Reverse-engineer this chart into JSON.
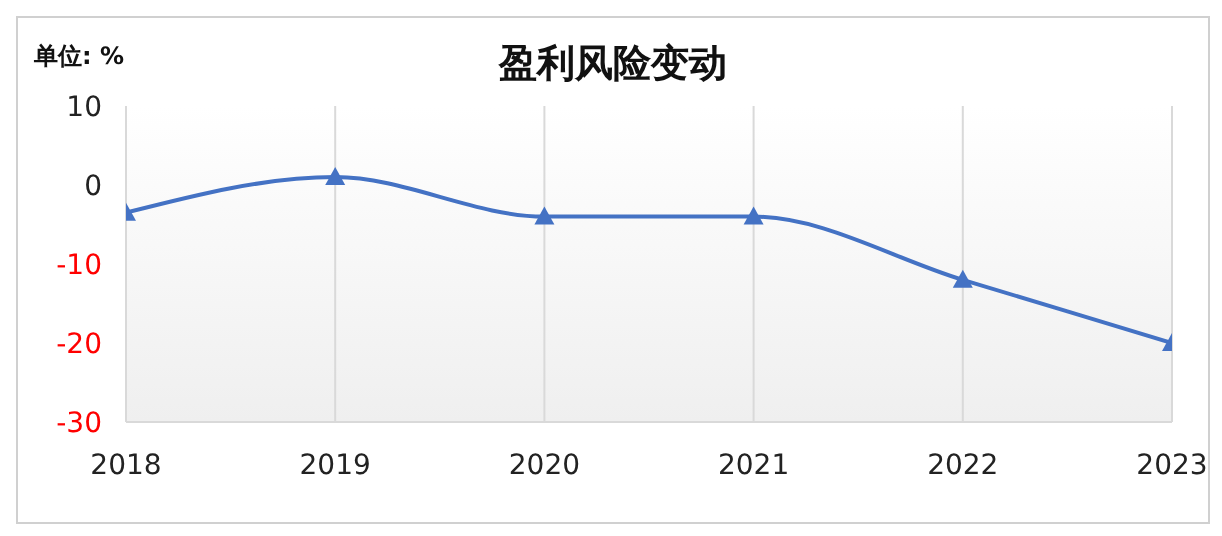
{
  "chart_data": {
    "type": "line",
    "title": "盈利风险变动",
    "ylabel": "单位: %",
    "x": [
      2018,
      2019,
      2020,
      2021,
      2022,
      2023
    ],
    "series": [
      {
        "color": "#4472c4",
        "values": [
          -3.5,
          1,
          -4,
          -4,
          -12,
          -20
        ]
      }
    ],
    "xlim": [
      2018,
      2023
    ],
    "xticks": [
      2018,
      2019,
      2020,
      2021,
      2022,
      2023
    ],
    "ylim": [
      -30,
      10
    ],
    "yticks": [
      -30,
      -20,
      -10,
      0,
      10
    ],
    "grid": "x",
    "marker": "triangle",
    "line_style": "solid"
  }
}
